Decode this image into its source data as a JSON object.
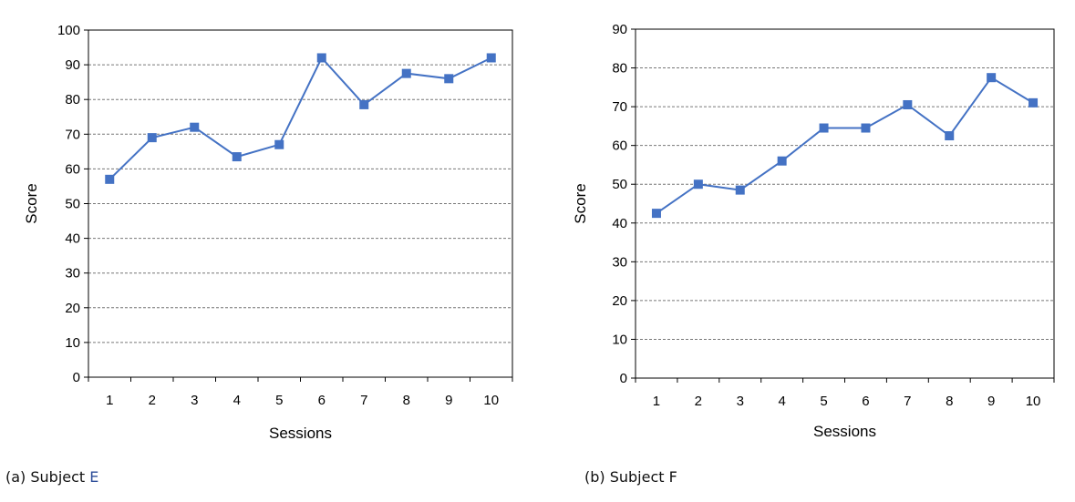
{
  "colors": {
    "series": "#4472c4",
    "grid": "#777777",
    "axis": "#000000"
  },
  "captions": [
    {
      "prefix": "(a) Subject ",
      "letter": "E"
    },
    {
      "prefix": "(b) Subject ",
      "letter": "F"
    }
  ],
  "chart_data": [
    {
      "type": "line",
      "marker": "square",
      "x": [
        1,
        2,
        3,
        4,
        5,
        6,
        7,
        8,
        9,
        10
      ],
      "values": [
        57,
        69,
        72,
        63.5,
        67,
        92,
        78.5,
        87.5,
        86,
        92
      ],
      "xlabel": "Sessions",
      "ylabel": "Score",
      "ylim": [
        0,
        100
      ],
      "yticks": [
        0,
        10,
        20,
        30,
        40,
        50,
        60,
        70,
        80,
        90,
        100
      ],
      "xticks": [
        1,
        2,
        3,
        4,
        5,
        6,
        7,
        8,
        9,
        10
      ],
      "grid": "horizontal dashed"
    },
    {
      "type": "line",
      "marker": "square",
      "x": [
        1,
        2,
        3,
        4,
        5,
        6,
        7,
        8,
        9,
        10
      ],
      "values": [
        42.5,
        50,
        48.5,
        56,
        64.5,
        64.5,
        70.5,
        62.5,
        77.5,
        71
      ],
      "xlabel": "Sessions",
      "ylabel": "Score",
      "ylim": [
        0,
        90
      ],
      "yticks": [
        0,
        10,
        20,
        30,
        40,
        50,
        60,
        70,
        80,
        90
      ],
      "xticks": [
        1,
        2,
        3,
        4,
        5,
        6,
        7,
        8,
        9,
        10
      ],
      "grid": "horizontal dashed"
    }
  ]
}
